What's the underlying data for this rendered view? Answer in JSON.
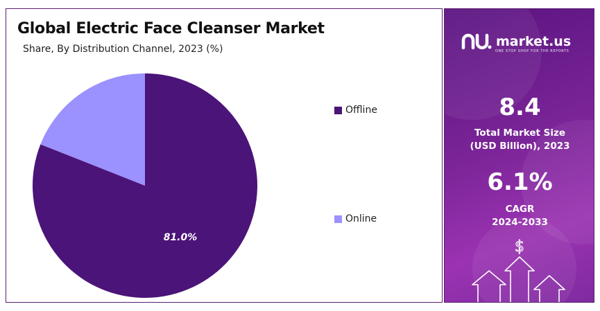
{
  "title": "Global Electric Face Cleanser Market",
  "subtitle": "Share, By Distribution Channel, 2023 (%)",
  "chart_data": {
    "type": "pie",
    "title": "Global Electric Face Cleanser Market",
    "subtitle": "Share, By Distribution Channel, 2023 (%)",
    "categories": [
      "Offline",
      "Online"
    ],
    "values": [
      81.0,
      19.0
    ],
    "colors": [
      "#4b1479",
      "#9b91ff"
    ],
    "data_labels": [
      "81.0%",
      ""
    ],
    "legend_position": "right"
  },
  "legend": [
    {
      "label": "Offline",
      "color": "#4b1479"
    },
    {
      "label": "Online",
      "color": "#9b91ff"
    }
  ],
  "sidebar": {
    "brand_name": "market.us",
    "brand_tagline": "ONE STOP SHOP FOR THE REPORTS",
    "market_size_value": "8.4",
    "market_size_label_line1": "Total Market Size",
    "market_size_label_line2": "(USD Billion), 2023",
    "cagr_value": "6.1%",
    "cagr_label_line1": "CAGR",
    "cagr_label_line2": "2024-2033",
    "currency_symbol": "$",
    "icons": [
      "market-us-logo-icon",
      "dollar-icon",
      "up-arrow-icon"
    ]
  }
}
